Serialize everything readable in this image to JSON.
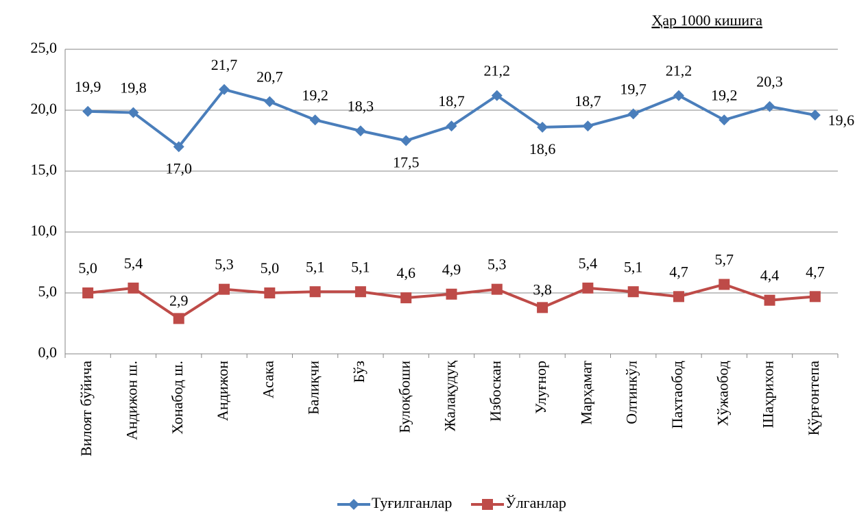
{
  "chart_data": {
    "type": "line",
    "annotation": "Ҳар 1000 кишига",
    "categories": [
      "Вилоят бўйича",
      "Андижон ш.",
      "Хонабод ш.",
      "Андижон",
      "Асака",
      "Балиқчи",
      "Бўз",
      "Булоқбоши",
      "Жалақудуқ",
      "Избоскан",
      "Улуғнор",
      "Марҳамат",
      "Олтинкўл",
      "Пахтаобод",
      "Хўжаобод",
      "Шаҳрихон",
      "Қўрғонтепа"
    ],
    "series": [
      {
        "name": "Туғилганлар",
        "color": "#4a7ebb",
        "marker": "diamond",
        "values": [
          19.9,
          19.8,
          17.0,
          21.7,
          20.7,
          19.2,
          18.3,
          17.5,
          18.7,
          21.2,
          18.6,
          18.7,
          19.7,
          21.2,
          19.2,
          20.3,
          19.6
        ],
        "value_labels": [
          "19,9",
          "19,8",
          "17,0",
          "21,7",
          "20,7",
          "19,2",
          "18,3",
          "17,5",
          "18,7",
          "21,2",
          "18,6",
          "18,7",
          "19,7",
          "21,2",
          "19,2",
          "20,3",
          "19,6"
        ]
      },
      {
        "name": "Ўлганлар",
        "color": "#be4b48",
        "marker": "square",
        "values": [
          5.0,
          5.4,
          2.9,
          5.3,
          5.0,
          5.1,
          5.1,
          4.6,
          4.9,
          5.3,
          3.8,
          5.4,
          5.1,
          4.7,
          5.7,
          4.4,
          4.7
        ],
        "value_labels": [
          "5,0",
          "5,4",
          "2,9",
          "5,3",
          "5,0",
          "5,1",
          "5,1",
          "4,6",
          "4,9",
          "5,3",
          "3,8",
          "5,4",
          "5,1",
          "4,7",
          "5,7",
          "4,4",
          "4,7"
        ]
      }
    ],
    "ylim": [
      0,
      25
    ],
    "yticks": [
      {
        "value": 0,
        "label": "0,0"
      },
      {
        "value": 5,
        "label": "5,0"
      },
      {
        "value": 10,
        "label": "10,0"
      },
      {
        "value": 15,
        "label": "15,0"
      },
      {
        "value": 20,
        "label": "20,0"
      },
      {
        "value": 25,
        "label": "25,0"
      }
    ],
    "grid": true,
    "legend": "bottom"
  }
}
